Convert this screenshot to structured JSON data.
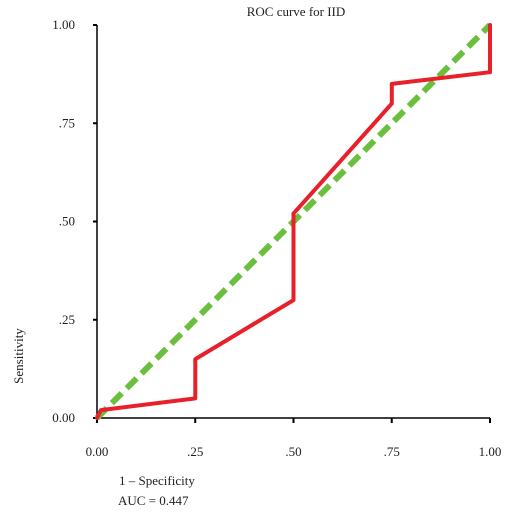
{
  "colors": {
    "roc_line": "#e8202a",
    "reference_line": "#6abf3c",
    "axis": "#000000",
    "text": "#222222"
  },
  "chart_data": {
    "type": "line",
    "title": "ROC curve for IID",
    "xlabel": "1 – Specificity",
    "ylabel": "Sensitivity",
    "xlim": [
      0,
      1
    ],
    "ylim": [
      0,
      1
    ],
    "x_tick_labels": [
      "0.00",
      ".25",
      ".50",
      ".75",
      "1.00"
    ],
    "y_tick_labels": [
      "0.00",
      ".25",
      ".50",
      ".75",
      "1.00"
    ],
    "x_ticks": [
      0,
      0.25,
      0.5,
      0.75,
      1
    ],
    "y_ticks": [
      0,
      0.25,
      0.5,
      0.75,
      1
    ],
    "grid": false,
    "series": [
      {
        "style": "solid",
        "color": "#e8202a",
        "x": [
          0.0,
          0.01,
          0.25,
          0.25,
          0.5,
          0.5,
          0.75,
          0.75,
          1.0,
          1.0
        ],
        "y": [
          0.0,
          0.02,
          0.05,
          0.15,
          0.3,
          0.52,
          0.8,
          0.85,
          0.88,
          1.0
        ]
      },
      {
        "style": "dashed",
        "color": "#6abf3c",
        "x": [
          0.0,
          1.0
        ],
        "y": [
          0.0,
          1.0
        ]
      }
    ],
    "annotation": "AUC = 0.447"
  }
}
